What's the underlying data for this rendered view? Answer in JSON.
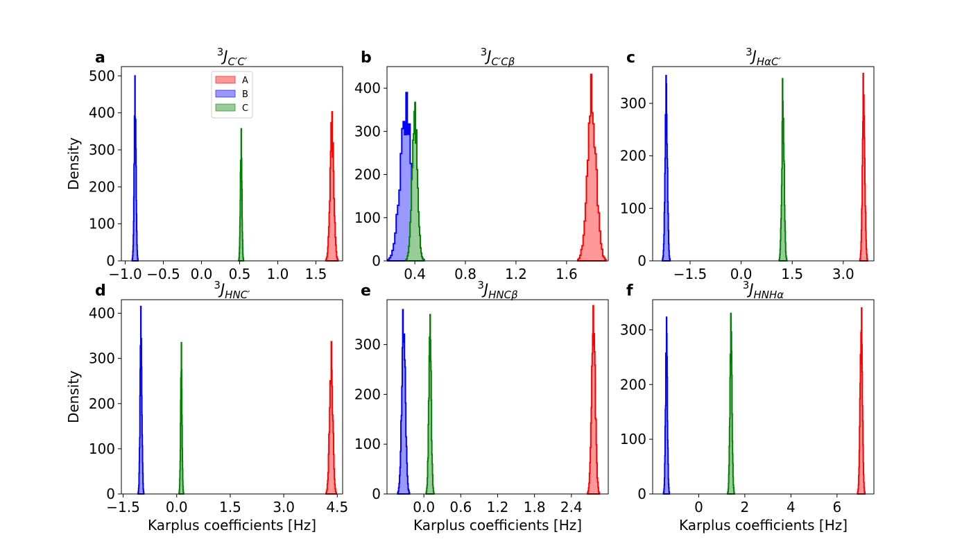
{
  "figure": {
    "legend": [
      {
        "label": "A",
        "color": "#ff0000",
        "fill": "#ff9999"
      },
      {
        "label": "B",
        "color": "#0000ff",
        "fill": "#9999ff"
      },
      {
        "label": "C",
        "color": "#008000",
        "fill": "#99cc99"
      }
    ],
    "xlabel": "Karplus coefficients [Hz]",
    "ylabel": "Density"
  },
  "chart_data": [
    {
      "type": "histogram",
      "panel_letter": "a",
      "title": {
        "base": "J",
        "sup": "3",
        "sub": "C′C′"
      },
      "xlim": [
        -1.05,
        1.85
      ],
      "ylim": [
        0,
        525
      ],
      "xticks": [
        -1.0,
        -0.5,
        0.0,
        0.5,
        1.0,
        1.5
      ],
      "xtick_labels": [
        "−1.0",
        "−0.5",
        "0.0",
        "0.5",
        "1.0",
        "1.5"
      ],
      "yticks": [
        0,
        100,
        200,
        300,
        400,
        500
      ],
      "ytick_labels": [
        "0",
        "100",
        "200",
        "300",
        "400",
        "500"
      ],
      "xlabel": "",
      "ylabel": "Density",
      "legend": "top-center",
      "series": [
        {
          "name": "B",
          "center": -0.87,
          "spread": 0.012,
          "peak": 500
        },
        {
          "name": "C",
          "center": 0.52,
          "spread": 0.01,
          "peak": 357
        },
        {
          "name": "A",
          "center": 1.71,
          "spread": 0.025,
          "peak": 403
        }
      ]
    },
    {
      "type": "histogram",
      "panel_letter": "b",
      "title": {
        "base": "J",
        "sup": "3",
        "sub": "C′Cβ"
      },
      "xlim": [
        0.18,
        1.93
      ],
      "ylim": [
        0,
        450
      ],
      "xticks": [
        0.4,
        0.8,
        1.2,
        1.6
      ],
      "xtick_labels": [
        "0.4",
        "0.8",
        "1.2",
        "1.6"
      ],
      "yticks": [
        0,
        100,
        200,
        300,
        400
      ],
      "ytick_labels": [
        "0",
        "100",
        "200",
        "300",
        "400"
      ],
      "xlabel": "",
      "ylabel": "",
      "series": [
        {
          "name": "B",
          "center": 0.33,
          "spread": 0.045,
          "peak": 390
        },
        {
          "name": "C",
          "center": 0.4,
          "spread": 0.022,
          "peak": 367
        },
        {
          "name": "A",
          "center": 1.8,
          "spread": 0.035,
          "peak": 432
        }
      ]
    },
    {
      "type": "histogram",
      "panel_letter": "c",
      "title": {
        "base": "J",
        "sup": "3",
        "sub": "HαC′"
      },
      "xlim": [
        -2.6,
        3.9
      ],
      "ylim": [
        0,
        370
      ],
      "xticks": [
        -1.5,
        0.0,
        1.5,
        3.0
      ],
      "xtick_labels": [
        "−1.5",
        "0.0",
        "1.5",
        "3.0"
      ],
      "yticks": [
        0,
        100,
        200,
        300
      ],
      "ytick_labels": [
        "0",
        "100",
        "200",
        "300"
      ],
      "xlabel": "",
      "ylabel": "",
      "series": [
        {
          "name": "B",
          "center": -2.2,
          "spread": 0.035,
          "peak": 353
        },
        {
          "name": "C",
          "center": 1.23,
          "spread": 0.035,
          "peak": 347
        },
        {
          "name": "A",
          "center": 3.6,
          "spread": 0.035,
          "peak": 357
        }
      ]
    },
    {
      "type": "histogram",
      "panel_letter": "d",
      "title": {
        "base": "J",
        "sup": "3",
        "sub": "HNC′"
      },
      "xlim": [
        -1.55,
        4.65
      ],
      "ylim": [
        0,
        430
      ],
      "xticks": [
        -1.5,
        0.0,
        1.5,
        3.0,
        4.5
      ],
      "xtick_labels": [
        "−1.5",
        "0.0",
        "1.5",
        "3.0",
        "4.5"
      ],
      "yticks": [
        0,
        100,
        200,
        300,
        400
      ],
      "ytick_labels": [
        "0",
        "100",
        "200",
        "300",
        "400"
      ],
      "xlabel": "Karplus coefficients [Hz]",
      "ylabel": "Density",
      "series": [
        {
          "name": "B",
          "center": -1.0,
          "spread": 0.025,
          "peak": 415
        },
        {
          "name": "C",
          "center": 0.13,
          "spread": 0.02,
          "peak": 335
        },
        {
          "name": "A",
          "center": 4.33,
          "spread": 0.045,
          "peak": 337
        }
      ]
    },
    {
      "type": "histogram",
      "panel_letter": "e",
      "title": {
        "base": "J",
        "sup": "3",
        "sub": "HNCβ"
      },
      "xlim": [
        -0.6,
        3.0
      ],
      "ylim": [
        0,
        390
      ],
      "xticks": [
        0.0,
        0.6,
        1.2,
        1.8,
        2.4
      ],
      "xtick_labels": [
        "0.0",
        "0.6",
        "1.2",
        "1.8",
        "2.4"
      ],
      "yticks": [
        0,
        100,
        200,
        300
      ],
      "ytick_labels": [
        "0",
        "100",
        "200",
        "300"
      ],
      "xlabel": "Karplus coefficients [Hz]",
      "ylabel": "",
      "series": [
        {
          "name": "B",
          "center": -0.33,
          "spread": 0.03,
          "peak": 370
        },
        {
          "name": "C",
          "center": 0.1,
          "spread": 0.02,
          "peak": 360
        },
        {
          "name": "A",
          "center": 2.76,
          "spread": 0.03,
          "peak": 378
        }
      ]
    },
    {
      "type": "histogram",
      "panel_letter": "f",
      "title": {
        "base": "J",
        "sup": "3",
        "sub": "HNHα"
      },
      "xlim": [
        -2.0,
        7.6
      ],
      "ylim": [
        0,
        355
      ],
      "xticks": [
        0,
        2,
        4,
        6
      ],
      "xtick_labels": [
        "0",
        "2",
        "4",
        "6"
      ],
      "yticks": [
        0,
        100,
        200,
        300
      ],
      "ytick_labels": [
        "0",
        "100",
        "200",
        "300"
      ],
      "xlabel": "Karplus coefficients [Hz]",
      "ylabel": "",
      "series": [
        {
          "name": "B",
          "center": -1.4,
          "spread": 0.04,
          "peak": 323
        },
        {
          "name": "C",
          "center": 1.4,
          "spread": 0.045,
          "peak": 330
        },
        {
          "name": "A",
          "center": 7.05,
          "spread": 0.05,
          "peak": 340
        }
      ]
    }
  ]
}
